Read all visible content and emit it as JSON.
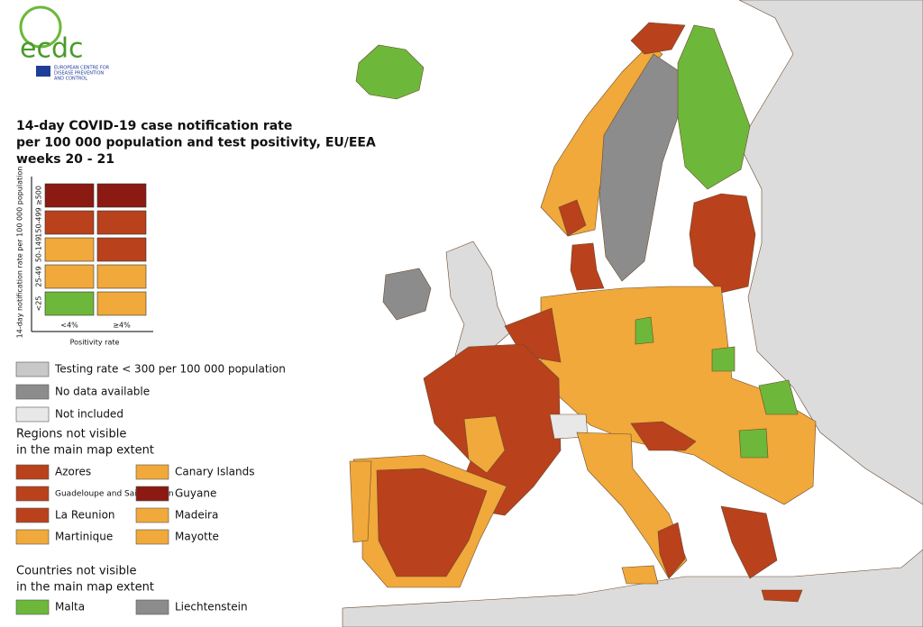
{
  "logo": {
    "name": "ecdc",
    "subtitle": [
      "EUROPEAN CENTRE FOR",
      "DISEASE PREVENTION",
      "AND CONTROL"
    ]
  },
  "title": [
    "14-day COVID-19 case notification rate",
    "per 100 000 population and test positivity, EU/EEA",
    "weeks 20 - 21"
  ],
  "matrix": {
    "y_label": "14-day notification rate per 100 000 population",
    "x_label": "Positivity rate",
    "rows": [
      "≥500",
      "150-499",
      "50-149",
      "25-49",
      "<25"
    ],
    "columns": [
      "<4%",
      "≥4%"
    ],
    "cells": [
      [
        "#8b1a12",
        "#8b1a12"
      ],
      [
        "#b9411c",
        "#b9411c"
      ],
      [
        "#f0a93a",
        "#b9411c"
      ],
      [
        "#f0a93a",
        "#f0a93a"
      ],
      [
        "#6db83a",
        "#f0a93a"
      ]
    ]
  },
  "legend": [
    {
      "label": "Testing rate < 300 per 100 000 population",
      "color": "#c8c8c8"
    },
    {
      "label": "No data available",
      "color": "#8c8c8c"
    },
    {
      "label": "Not included",
      "color": "#e8e8e8"
    }
  ],
  "regions": {
    "heading": [
      "Regions not visible",
      "in the main map extent"
    ],
    "items": [
      {
        "label": "Azores",
        "color": "#b9411c"
      },
      {
        "label": "Canary Islands",
        "color": "#f0a93a"
      },
      {
        "label": "Guadeloupe and Saint Martin",
        "color": "#b9411c"
      },
      {
        "label": "Guyane",
        "color": "#8b1a12"
      },
      {
        "label": "La Reunion",
        "color": "#b9411c"
      },
      {
        "label": "Madeira",
        "color": "#f0a93a"
      },
      {
        "label": "Martinique",
        "color": "#f0a93a"
      },
      {
        "label": "Mayotte",
        "color": "#f0a93a"
      }
    ]
  },
  "countries": {
    "heading": [
      "Countries not visible",
      "in the main map extent"
    ],
    "items": [
      {
        "label": "Malta",
        "color": "#6db83a"
      },
      {
        "label": "Liechtenstein",
        "color": "#8c8c8c"
      }
    ]
  }
}
